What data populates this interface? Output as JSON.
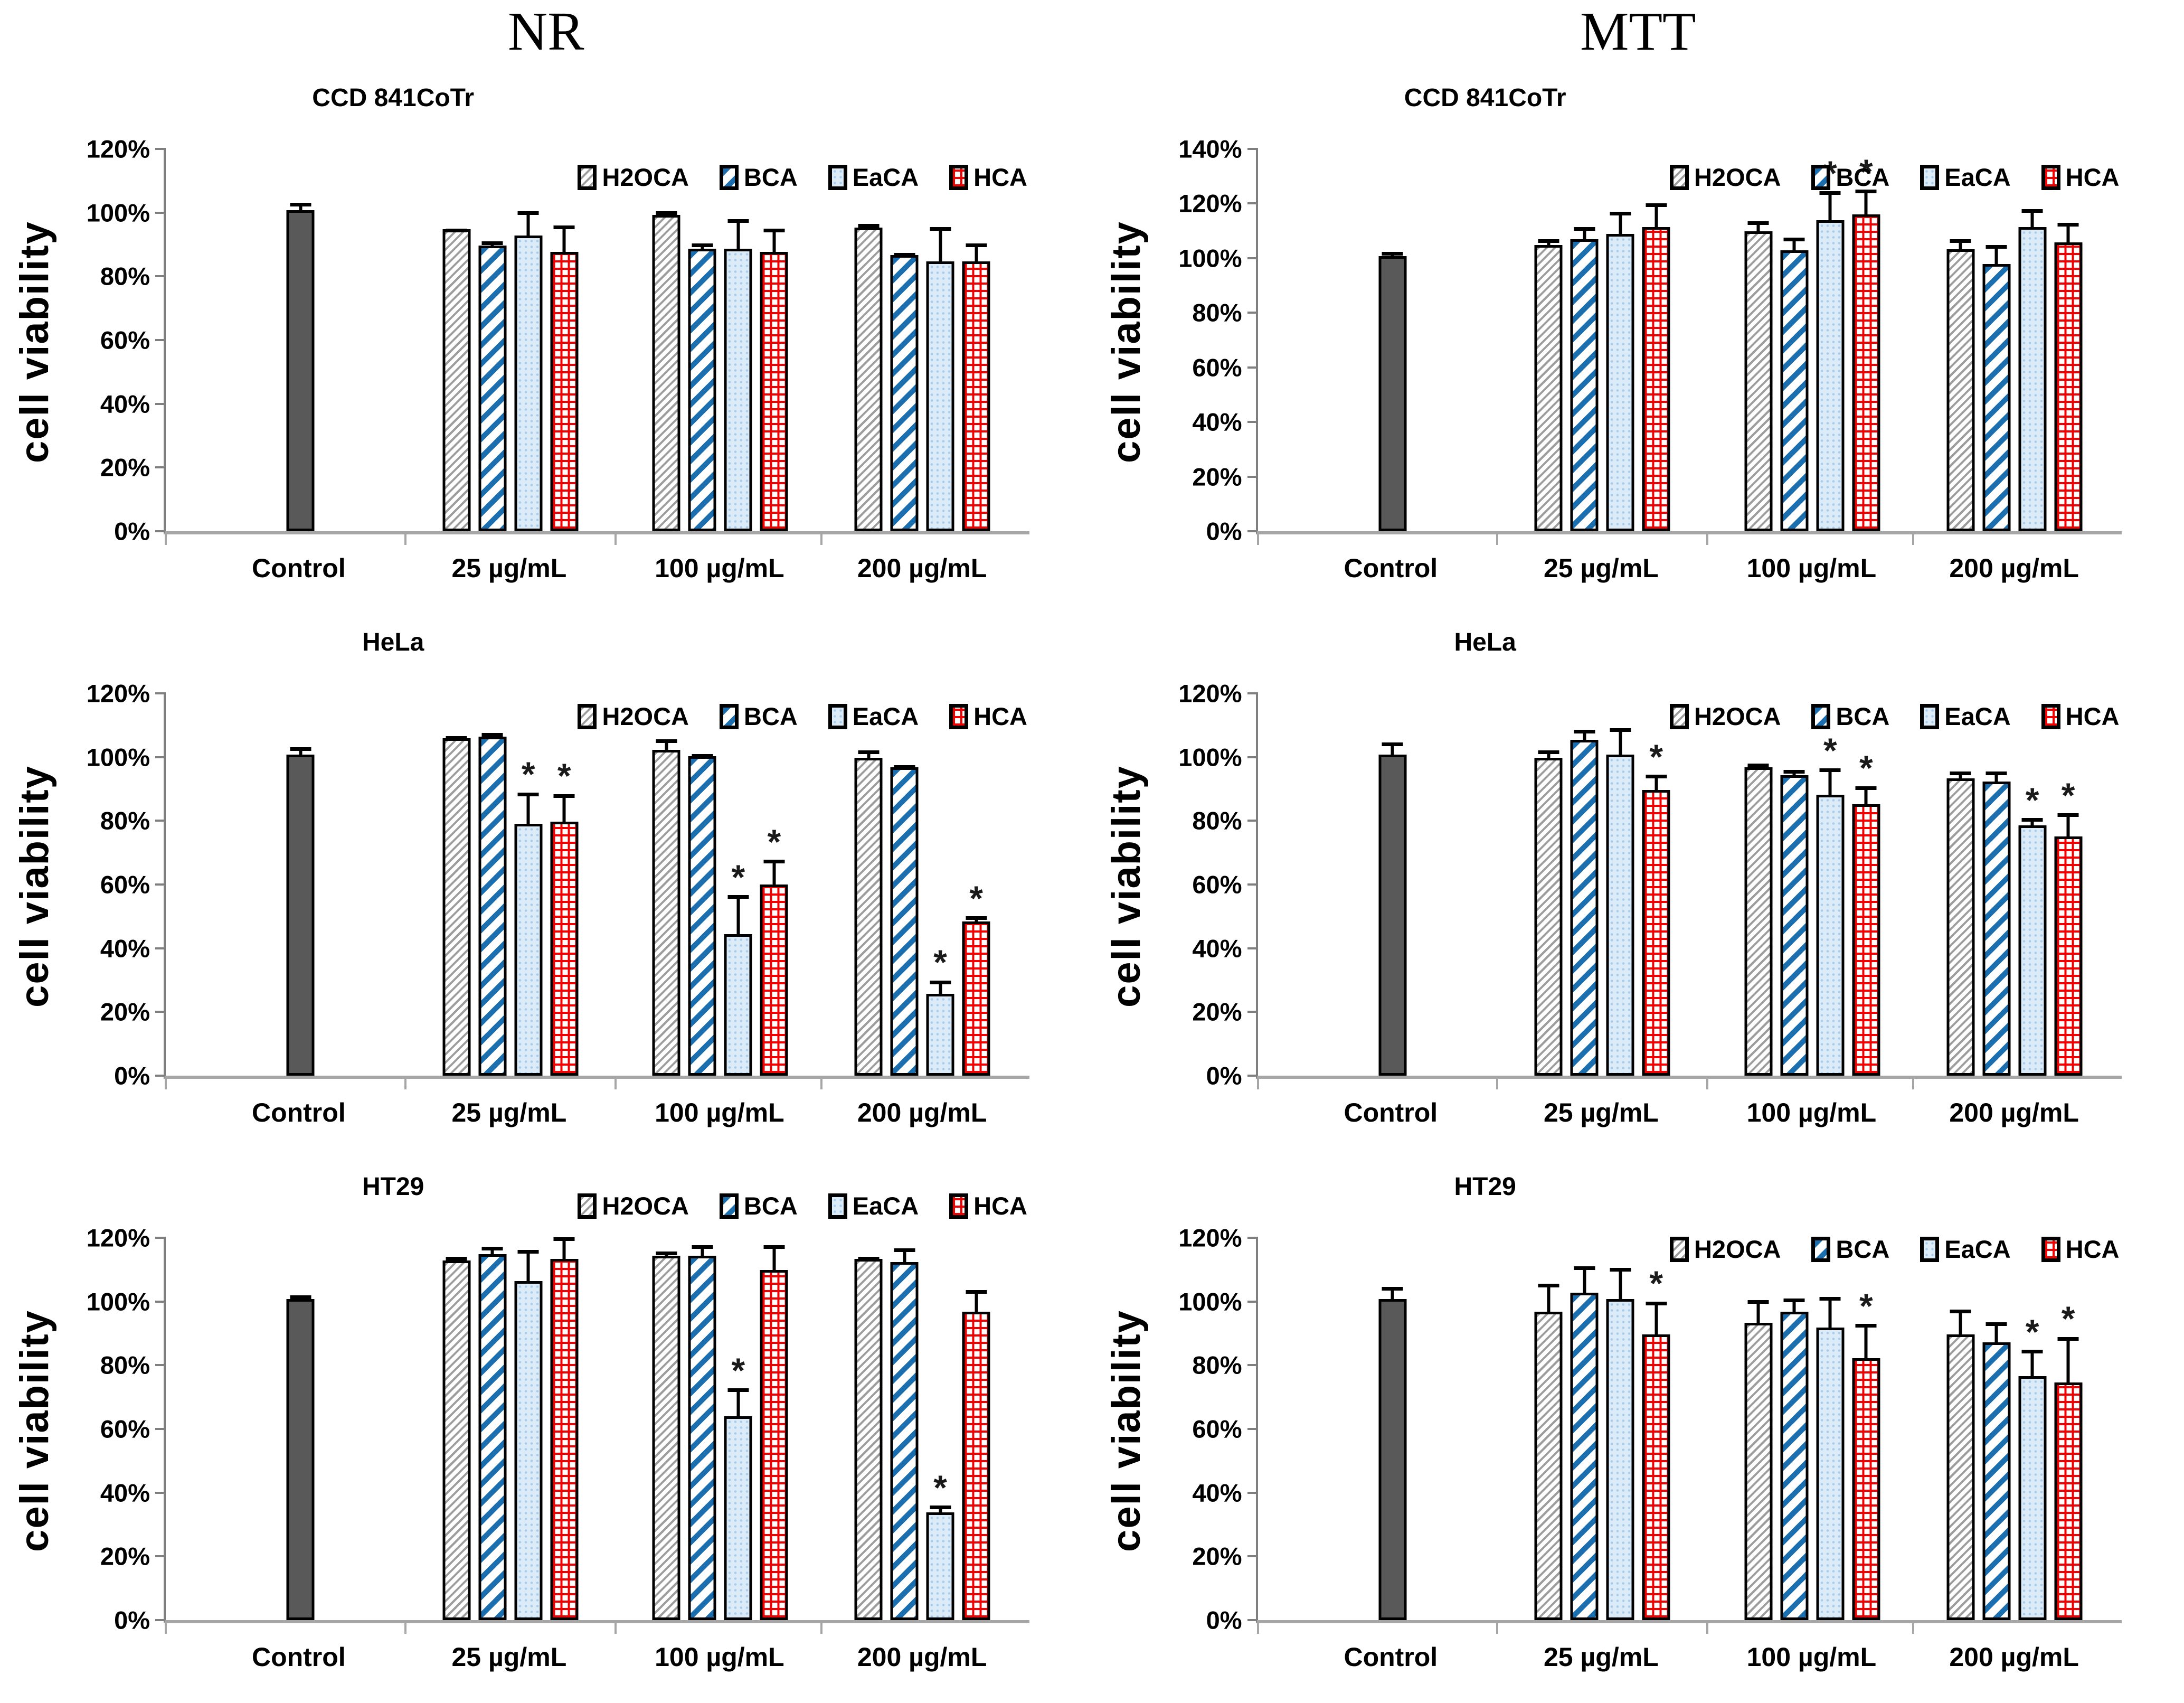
{
  "page": {
    "left_column_title": "NR",
    "right_column_title": "MTT"
  },
  "legend_labels": [
    "H2OCA",
    "BCA",
    "EaCA",
    "HCA"
  ],
  "significance_marker": "*",
  "colors": {
    "control_fill": "#595959",
    "h2oca_hatch_gray": "#9d9d9d",
    "bca_stripe_blue": "#1b6fae",
    "eaca_fill_blue": "#dcebf8",
    "eaca_dot_blue": "#a9cdea",
    "hca_grid_red": "#f20000",
    "axis_gray": "#a6a6a6",
    "bar_border": "#000000"
  },
  "chart_data": [
    {
      "type": "bar",
      "panel_column": "NR",
      "title": "CCD 841CoTr",
      "ylabel": "cell viability",
      "ylim": [
        0,
        120
      ],
      "ytick_step": 20,
      "categories": [
        "Control",
        "25 µg/mL",
        "100 µg/mL",
        "200 µg/mL"
      ],
      "control": {
        "value": 100,
        "error": 3
      },
      "series": [
        {
          "name": "H2OCA",
          "values": [
            94,
            98.5,
            94.5
          ],
          "errors": [
            1,
            2,
            2
          ],
          "sig": [
            false,
            false,
            false
          ]
        },
        {
          "name": "BCA",
          "values": [
            89,
            88,
            86
          ],
          "errors": [
            2,
            2.5,
            1.5
          ],
          "sig": [
            false,
            false,
            false
          ]
        },
        {
          "name": "EaCA",
          "values": [
            92,
            88,
            84
          ],
          "errors": [
            8.5,
            10,
            11.5
          ],
          "sig": [
            false,
            false,
            false
          ]
        },
        {
          "name": "HCA",
          "values": [
            87,
            87,
            84
          ],
          "errors": [
            9,
            8,
            6.5
          ],
          "sig": [
            false,
            false,
            false
          ]
        }
      ]
    },
    {
      "type": "bar",
      "panel_column": "MTT",
      "title": "CCD 841CoTr",
      "ylabel": "cell viability",
      "ylim": [
        0,
        140
      ],
      "ytick_step": 20,
      "categories": [
        "Control",
        "25 µg/mL",
        "100 µg/mL",
        "200 µg/mL"
      ],
      "control": {
        "value": 100,
        "error": 2.5
      },
      "series": [
        {
          "name": "H2OCA",
          "values": [
            104,
            109,
            102.5
          ],
          "errors": [
            3,
            4.5,
            4.5
          ],
          "sig": [
            false,
            false,
            false
          ]
        },
        {
          "name": "BCA",
          "values": [
            106,
            102,
            97
          ],
          "errors": [
            5.5,
            5.5,
            8
          ],
          "sig": [
            false,
            false,
            false
          ]
        },
        {
          "name": "EaCA",
          "values": [
            108,
            113,
            110.5
          ],
          "errors": [
            9,
            11.5,
            7.5
          ],
          "sig": [
            false,
            true,
            false
          ]
        },
        {
          "name": "HCA",
          "values": [
            110.5,
            115,
            105
          ],
          "errors": [
            9.5,
            10,
            8
          ],
          "sig": [
            false,
            true,
            false
          ]
        }
      ]
    },
    {
      "type": "bar",
      "panel_column": "NR",
      "title": "HeLa",
      "ylabel": "cell viability",
      "ylim": [
        0,
        120
      ],
      "ytick_step": 20,
      "categories": [
        "Control",
        "25 µg/mL",
        "100 µg/mL",
        "200 µg/mL"
      ],
      "control": {
        "value": 100,
        "error": 3
      },
      "series": [
        {
          "name": "H2OCA",
          "values": [
            105,
            101.5,
            99
          ],
          "errors": [
            1.5,
            4,
            3
          ],
          "sig": [
            false,
            false,
            false
          ]
        },
        {
          "name": "BCA",
          "values": [
            105.5,
            99.5,
            96
          ],
          "errors": [
            2,
            1.5,
            1.5
          ],
          "sig": [
            false,
            false,
            false
          ]
        },
        {
          "name": "EaCA",
          "values": [
            78.5,
            44,
            25.5
          ],
          "errors": [
            10.5,
            13,
            5
          ],
          "sig": [
            true,
            true,
            true
          ]
        },
        {
          "name": "HCA",
          "values": [
            79,
            59.5,
            48
          ],
          "errors": [
            9.5,
            8.5,
            2.5
          ],
          "sig": [
            true,
            true,
            true
          ]
        }
      ]
    },
    {
      "type": "bar",
      "panel_column": "MTT",
      "title": "HeLa",
      "ylabel": "cell viability",
      "ylim": [
        0,
        120
      ],
      "ytick_step": 20,
      "categories": [
        "Control",
        "25 µg/mL",
        "100 µg/mL",
        "200 µg/mL"
      ],
      "control": {
        "value": 100,
        "error": 4.5
      },
      "series": [
        {
          "name": "H2OCA",
          "values": [
            99,
            96,
            92.5
          ],
          "errors": [
            3,
            2,
            3
          ],
          "sig": [
            false,
            false,
            false
          ]
        },
        {
          "name": "BCA",
          "values": [
            104.5,
            93.5,
            91.5
          ],
          "errors": [
            4,
            2.5,
            4
          ],
          "sig": [
            false,
            false,
            false
          ]
        },
        {
          "name": "EaCA",
          "values": [
            100,
            87.5,
            78
          ],
          "errors": [
            9,
            9,
            3
          ],
          "sig": [
            false,
            true,
            true
          ]
        },
        {
          "name": "HCA",
          "values": [
            89,
            84.5,
            74.5
          ],
          "errors": [
            5.5,
            6.5,
            8
          ],
          "sig": [
            true,
            true,
            true
          ]
        }
      ]
    },
    {
      "type": "bar",
      "panel_column": "NR",
      "title": "HT29",
      "ylabel": "cell viability",
      "ylim": [
        0,
        120
      ],
      "ytick_step": 20,
      "categories": [
        "Control",
        "25 µg/mL",
        "100 µg/mL",
        "200 µg/mL"
      ],
      "control": {
        "value": 100,
        "error": 2
      },
      "series": [
        {
          "name": "H2OCA",
          "values": [
            112,
            113.5,
            112.5
          ],
          "errors": [
            2,
            2,
            1.5
          ],
          "sig": [
            false,
            false,
            false
          ]
        },
        {
          "name": "BCA",
          "values": [
            114,
            113.5,
            111.5
          ],
          "errors": [
            3,
            4,
            5
          ],
          "sig": [
            false,
            false,
            false
          ]
        },
        {
          "name": "EaCA",
          "values": [
            105.5,
            63.5,
            33.5
          ],
          "errors": [
            10.5,
            9.5,
            3
          ],
          "sig": [
            false,
            true,
            true
          ]
        },
        {
          "name": "HCA",
          "values": [
            112.5,
            109,
            96
          ],
          "errors": [
            7.5,
            8.5,
            7.5
          ],
          "sig": [
            false,
            false,
            false
          ]
        }
      ]
    },
    {
      "type": "bar",
      "panel_column": "MTT",
      "title": "HT29",
      "ylabel": "cell viability",
      "ylim": [
        0,
        120
      ],
      "ytick_step": 20,
      "categories": [
        "Control",
        "25 µg/mL",
        "100 µg/mL",
        "200 µg/mL"
      ],
      "control": {
        "value": 100,
        "error": 4.5
      },
      "series": [
        {
          "name": "H2OCA",
          "values": [
            96,
            92.5,
            89
          ],
          "errors": [
            9.5,
            8,
            8.5
          ],
          "sig": [
            false,
            false,
            false
          ]
        },
        {
          "name": "BCA",
          "values": [
            102,
            96,
            86.5
          ],
          "errors": [
            9,
            5,
            7
          ],
          "sig": [
            false,
            false,
            false
          ]
        },
        {
          "name": "EaCA",
          "values": [
            100,
            91,
            76
          ],
          "errors": [
            10.5,
            10.5,
            9
          ],
          "sig": [
            false,
            false,
            true
          ]
        },
        {
          "name": "HCA",
          "values": [
            89,
            81.5,
            74
          ],
          "errors": [
            11,
            11.5,
            15
          ],
          "sig": [
            true,
            true,
            true
          ]
        }
      ]
    }
  ]
}
